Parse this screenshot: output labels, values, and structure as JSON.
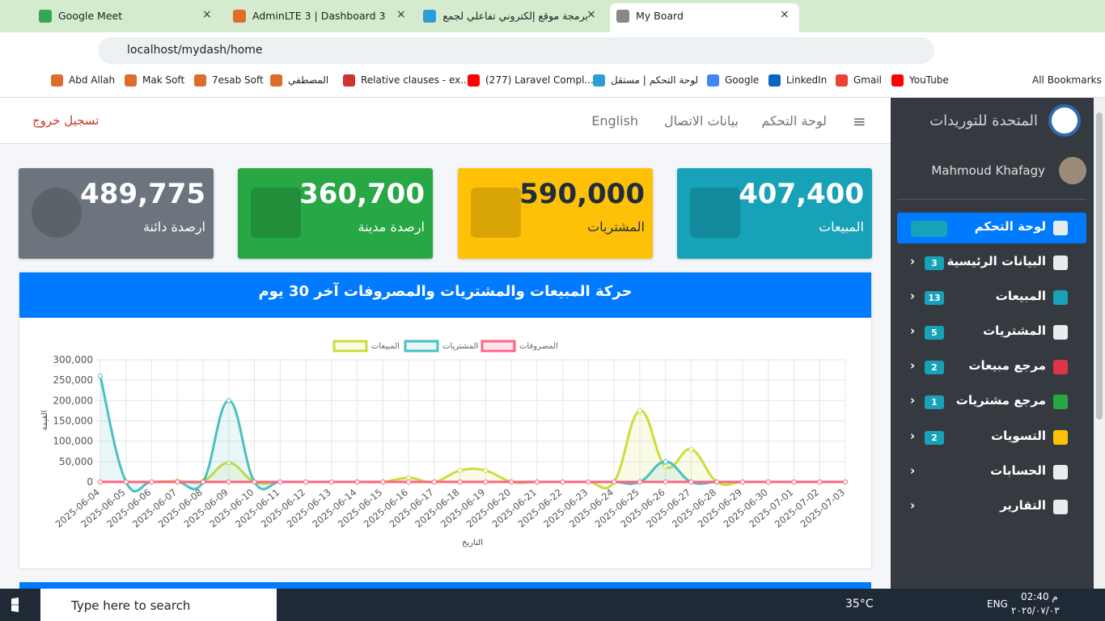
{
  "browser": {
    "tabs": [
      "Google Meet",
      "AdminLTE 3 | Dashboard 3",
      "برمجة موقع إلكتروني تفاعلي لجمع",
      "My Board"
    ],
    "url": "localhost/mydash/home",
    "bookmarks": [
      "Abd Allah",
      "Mak Soft",
      "7esab Soft",
      "المصطفي",
      "Relative clauses - ex...",
      "(277) Laravel Compl...",
      "لوحة التحكم | مستقل",
      "Google",
      "LinkedIn",
      "Gmail",
      "YouTube"
    ],
    "all_bookmarks": "All Bookmarks"
  },
  "navbar": {
    "links": [
      "لوحة التحكم",
      "بيانات الاتصال",
      "English"
    ],
    "logout": "تسجيل خروج"
  },
  "sidebar": {
    "brand": "المتحدة للتوريدات",
    "user": "Mahmoud Khafagy",
    "menu": [
      {
        "label": "لوحة التحكم"
      },
      {
        "label": "البيانات الرئيسية",
        "badge": "3"
      },
      {
        "label": "المبيعات",
        "badge": "13"
      },
      {
        "label": "المشتريات",
        "badge": "5"
      },
      {
        "label": "مرجع مبيعات",
        "badge": "2"
      },
      {
        "label": "مرجع مشتريات",
        "badge": "1"
      },
      {
        "label": "التسويات",
        "badge": "2"
      },
      {
        "label": "الحسابات"
      },
      {
        "label": "التقارير"
      }
    ]
  },
  "stats": [
    {
      "value": "489,775",
      "label": "ارصدة دائنة",
      "color": "#6c757d"
    },
    {
      "value": "360,700",
      "label": "ارصدة مدينة",
      "color": "#28a745"
    },
    {
      "value": "590,000",
      "label": "المشتريات",
      "color": "#ffc107"
    },
    {
      "value": "407,400",
      "label": "المبيعات",
      "color": "#17a2b8"
    }
  ],
  "chart_card": {
    "title": "حركة المبيعات والمشتريات والمصروفات آخر 30 يوم"
  },
  "chart_data": {
    "type": "line",
    "x_label": "التاريخ",
    "y_label": "القيمة",
    "x": [
      "2025-06-04",
      "2025-06-05",
      "2025-06-06",
      "2025-06-07",
      "2025-06-08",
      "2025-06-09",
      "2025-06-10",
      "2025-06-11",
      "2025-06-12",
      "2025-06-13",
      "2025-06-14",
      "2025-06-15",
      "2025-06-16",
      "2025-06-17",
      "2025-06-18",
      "2025-06-19",
      "2025-06-20",
      "2025-06-21",
      "2025-06-22",
      "2025-06-23",
      "2025-06-24",
      "2025-06-25",
      "2025-06-26",
      "2025-06-27",
      "2025-06-28",
      "2025-06-29",
      "2025-06-30",
      "2025-07-01",
      "2025-07-02",
      "2025-07-03"
    ],
    "series": [
      {
        "name": "المبيعات",
        "color": "#cddc39",
        "fill": true,
        "values": [
          0,
          0,
          0,
          2000,
          2000,
          47000,
          0,
          0,
          0,
          0,
          0,
          0,
          10000,
          0,
          28000,
          28000,
          0,
          0,
          0,
          0,
          0,
          175000,
          38000,
          80000,
          0,
          0,
          0,
          0,
          0,
          0
        ]
      },
      {
        "name": "المشتريات",
        "color": "#4bc0c0",
        "fill": true,
        "values": [
          260000,
          0,
          0,
          0,
          0,
          200000,
          0,
          0,
          0,
          0,
          0,
          0,
          0,
          0,
          0,
          0,
          0,
          0,
          0,
          0,
          0,
          0,
          50000,
          0,
          0,
          0,
          0,
          0,
          0,
          0
        ]
      },
      {
        "name": "المصروفات",
        "color": "#ff6384",
        "fill": false,
        "values": [
          0,
          0,
          0,
          0,
          0,
          0,
          0,
          0,
          0,
          0,
          0,
          0,
          0,
          0,
          0,
          0,
          0,
          0,
          0,
          0,
          0,
          0,
          0,
          0,
          0,
          0,
          0,
          0,
          0,
          0
        ]
      }
    ],
    "ylim": [
      0,
      300000
    ],
    "yticks": [
      0,
      {
        "value": 50000,
        "label": "50,000"
      },
      {
        "value": 100000,
        "label": "100,000"
      },
      {
        "value": 150000,
        "label": "150,000"
      },
      {
        "value": 200000,
        "label": "200,000"
      },
      {
        "value": 250000,
        "label": "250,000"
      },
      {
        "value": 300000,
        "label": "300,000"
      }
    ],
    "grid": true
  },
  "taskbar": {
    "search": "Type here to search",
    "weather": "35°C",
    "lang": "ENG",
    "time": "02:40 م",
    "date": "٢٠٢٥/٠٧/٠٣"
  }
}
